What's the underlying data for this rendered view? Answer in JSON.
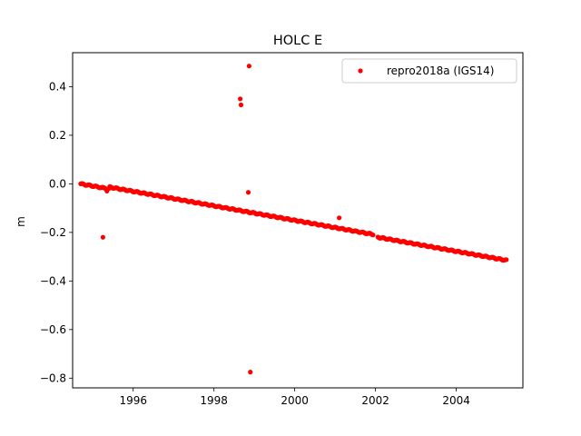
{
  "chart_data": {
    "type": "scatter",
    "title": "HOLC E",
    "xlabel": "",
    "ylabel": "m",
    "xlim": [
      1994.5,
      2005.65
    ],
    "ylim": [
      -0.84,
      0.54
    ],
    "xticks": [
      1996,
      1998,
      2000,
      2002,
      2004
    ],
    "yticks": [
      0.4,
      0.2,
      0.0,
      -0.2,
      -0.4,
      -0.6,
      -0.8
    ],
    "ytick_labels": [
      "0.4",
      "0.2",
      "0.0",
      "−0.2",
      "−0.4",
      "−0.6",
      "−0.8"
    ],
    "grid": false,
    "legend_position": "top-right",
    "series": [
      {
        "name": "repro2018a (IGS14)",
        "color": "#ff0000",
        "marker": "circle",
        "trend": {
          "x_start": 1994.7,
          "y_start": 0.0,
          "x_end": 2005.25,
          "y_end": -0.315,
          "step": 0.02,
          "gaps": [
            [
              2001.95,
              2002.05
            ]
          ],
          "offset_segments": [
            {
              "from": 1995.4,
              "to": 2001.95,
              "offset": 0.008
            }
          ]
        },
        "x": [
          1995.25,
          1995.35,
          1998.65,
          1998.67,
          1998.85,
          1998.87,
          1998.9,
          2001.1,
          2001.12
        ],
        "y": [
          -0.22,
          -0.03,
          0.35,
          0.325,
          -0.035,
          0.485,
          -0.775,
          -0.14,
          -0.185
        ]
      }
    ]
  }
}
